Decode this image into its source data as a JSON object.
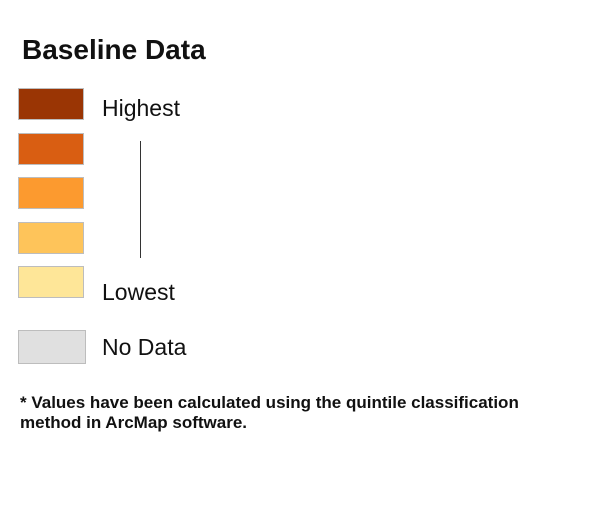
{
  "legend": {
    "title": "Baseline Data",
    "classes": [
      {
        "color": "#9a3504"
      },
      {
        "color": "#d95e12"
      },
      {
        "color": "#fc9a2f"
      },
      {
        "color": "#fec45a"
      },
      {
        "color": "#fee698"
      }
    ],
    "highest_label": "Highest",
    "lowest_label": "Lowest",
    "no_data": {
      "label": "No Data",
      "color": "#e0e0e0"
    }
  },
  "footnote": "* Values have been calculated using the quintile classification method in ArcMap software."
}
